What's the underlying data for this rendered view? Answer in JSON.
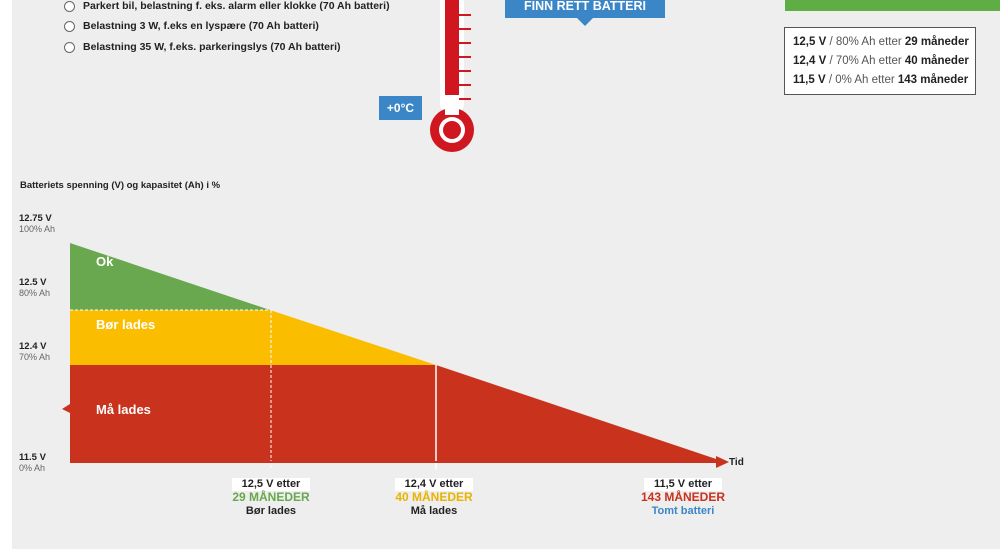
{
  "options": [
    "Parkert bil, belastning f. eks. alarm eller klokke (70 Ah batteri)",
    "Belastning 3 W, f.eks en lyspære (70 Ah batteri)",
    "Belastning 35 W, f.eks. parkeringslys (70 Ah batteri)"
  ],
  "cta_label": "FINN RETT BATTERI",
  "temperature": "+0°C",
  "info": [
    {
      "v": "12,5 V",
      "mid": " / 80% Ah etter ",
      "m": "29 måneder"
    },
    {
      "v": "12,4 V",
      "mid": " / 70% Ah etter ",
      "m": "40 måneder"
    },
    {
      "v": "11,5 V",
      "mid": " / 0% Ah etter ",
      "m": "143 måneder"
    }
  ],
  "chart_data": {
    "type": "area",
    "title": "Batteriets spenning (V) og kapasitet (Ah) i %",
    "x_axis_label": "Tid",
    "x_unit": "måneder",
    "xlim": [
      0,
      143
    ],
    "y_ticks": [
      {
        "v": "12.75 V",
        "pct": "100% Ah"
      },
      {
        "v": "12.5 V",
        "pct": "80% Ah"
      },
      {
        "v": "12.4 V",
        "pct": "70% Ah"
      },
      {
        "v": "11.5 V",
        "pct": "0% Ah"
      }
    ],
    "series": [
      {
        "x": [
          0,
          29,
          40,
          143
        ],
        "y": [
          12.75,
          12.5,
          12.4,
          11.5
        ]
      }
    ],
    "zones": [
      {
        "label": "Ok",
        "color": "#6aa84f"
      },
      {
        "label": "Bør lades",
        "color": "#fbbd00"
      },
      {
        "label": "Må lades",
        "color": "#c9321c"
      }
    ],
    "markers": [
      {
        "x": 29,
        "line1": "12,5 V etter",
        "line2": "29 MÅNEDER",
        "line3": "Bør lades",
        "color": "#6aa84f",
        "line3_color": "#222222"
      },
      {
        "x": 40,
        "line1": "12,4 V etter",
        "line2": "40 MÅNEDER",
        "line3": "Må lades",
        "color": "#e8b400",
        "line3_color": "#222222"
      },
      {
        "x": 143,
        "line1": "11,5 V etter",
        "line2": "143 MÅNEDER",
        "line3": "Tomt batteri",
        "color": "#c9321c",
        "line3_color": "#3b86c6"
      }
    ]
  }
}
